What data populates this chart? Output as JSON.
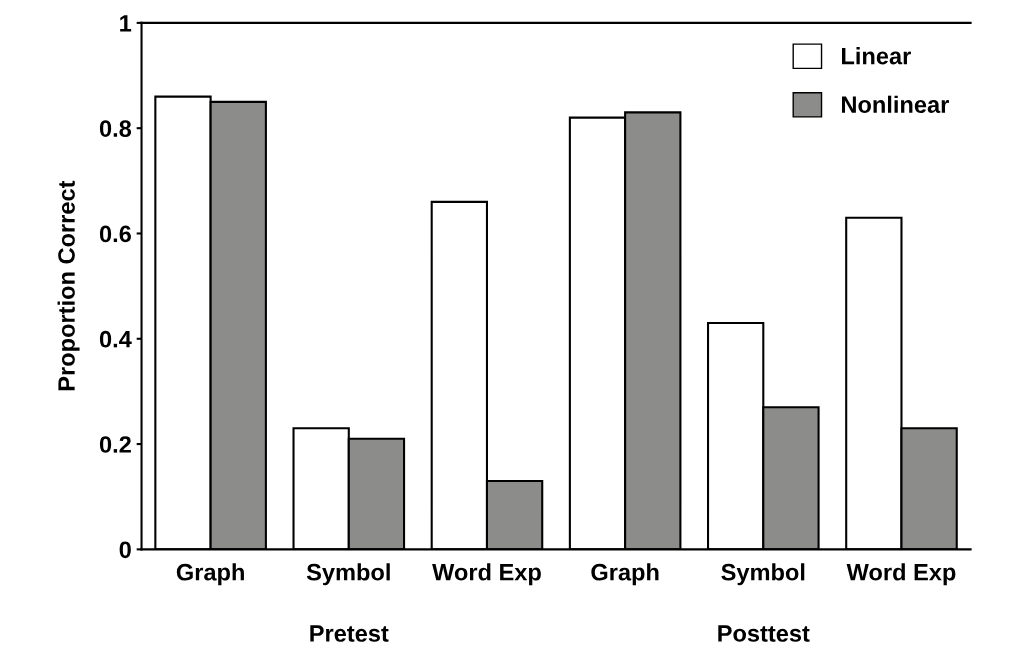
{
  "chart_data": {
    "type": "bar",
    "ylabel": "Proportion Correct",
    "categories": [
      "Graph",
      "Symbol",
      "Word Exp",
      "Graph",
      "Symbol",
      "Word Exp"
    ],
    "series": [
      {
        "name": "Linear",
        "color": "#ffffff",
        "values": [
          0.86,
          0.23,
          0.66,
          0.82,
          0.43,
          0.63
        ]
      },
      {
        "name": "Nonlinear",
        "color": "#8c8c8a",
        "values": [
          0.85,
          0.21,
          0.13,
          0.83,
          0.27,
          0.23
        ]
      }
    ],
    "ylim": [
      0,
      1
    ],
    "yticks": [
      0,
      0.2,
      0.4,
      0.6,
      0.8,
      1
    ],
    "grid": false,
    "legend": "top right",
    "annotations": [
      "Pretest",
      "Posttest"
    ]
  }
}
